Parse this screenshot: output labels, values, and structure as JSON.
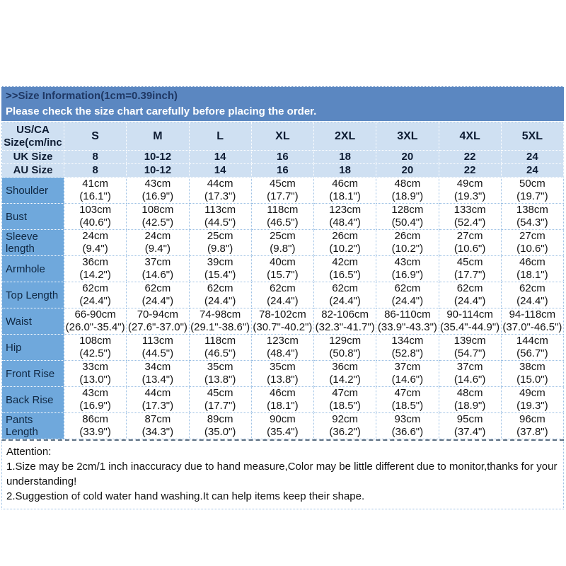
{
  "colors": {
    "banner_blue": "#5b87c1",
    "header_light_blue": "#cfe0f2",
    "row_label_blue": "#6fa8dc",
    "grid_dotted_blue": "#9cc0e4",
    "title_navy": "#1f3864",
    "bottom_rule_gray": "#5f7183"
  },
  "banner": {
    "title": ">>Size Information(1cm=0.39inch)",
    "subtitle": "Please check the size chart carefully before placing the order."
  },
  "table": {
    "corner": {
      "line1": "US/CA",
      "line2": "Size(cm/inc"
    },
    "columns": [
      "S",
      "M",
      "L",
      "XL",
      "2XL",
      "3XL",
      "4XL",
      "5XL"
    ],
    "uk": {
      "label": "UK Size",
      "values": [
        "8",
        "10-12",
        "14",
        "16",
        "18",
        "20",
        "22",
        "24"
      ]
    },
    "au": {
      "label": "AU Size",
      "values": [
        "8",
        "10-12",
        "14",
        "16",
        "18",
        "20",
        "22",
        "24"
      ]
    },
    "measurements": [
      {
        "label": "Shoulder",
        "cm": [
          "41cm",
          "43cm",
          "44cm",
          "45cm",
          "46cm",
          "48cm",
          "49cm",
          "50cm"
        ],
        "inch": [
          "(16.1\")",
          "(16.9\")",
          "(17.3\")",
          "(17.7\")",
          "(18.1\")",
          "(18.9\")",
          "(19.3\")",
          "(19.7\")"
        ]
      },
      {
        "label": "Bust",
        "cm": [
          "103cm",
          "108cm",
          "113cm",
          "118cm",
          "123cm",
          "128cm",
          "133cm",
          "138cm"
        ],
        "inch": [
          "(40.6\")",
          "(42.5\")",
          "(44.5\")",
          "(46.5\")",
          "(48.4\")",
          "(50.4\")",
          "(52.4\")",
          "(54.3\")"
        ]
      },
      {
        "label": "Sleeve length",
        "cm": [
          "24cm",
          "24cm",
          "25cm",
          "25cm",
          "26cm",
          "26cm",
          "27cm",
          "27cm"
        ],
        "inch": [
          "(9.4\")",
          "(9.4\")",
          "(9.8\")",
          "(9.8\")",
          "(10.2\")",
          "(10.2\")",
          "(10.6\")",
          "(10.6\")"
        ]
      },
      {
        "label": "Armhole",
        "cm": [
          "36cm",
          "37cm",
          "39cm",
          "40cm",
          "42cm",
          "43cm",
          "45cm",
          "46cm"
        ],
        "inch": [
          "(14.2\")",
          "(14.6\")",
          "(15.4\")",
          "(15.7\")",
          "(16.5\")",
          "(16.9\")",
          "(17.7\")",
          "(18.1\")"
        ]
      },
      {
        "label": "Top Length",
        "cm": [
          "62cm",
          "62cm",
          "62cm",
          "62cm",
          "62cm",
          "62cm",
          "62cm",
          "62cm"
        ],
        "inch": [
          "(24.4\")",
          "(24.4\")",
          "(24.4\")",
          "(24.4\")",
          "(24.4\")",
          "(24.4\")",
          "(24.4\")",
          "(24.4\")"
        ]
      },
      {
        "label": "Waist",
        "cm": [
          "66-90cm",
          "70-94cm",
          "74-98cm",
          "78-102cm",
          "82-106cm",
          "86-110cm",
          "90-114cm",
          "94-118cm"
        ],
        "inch": [
          "(26.0\"-35.4\")",
          "(27.6\"-37.0\")",
          "(29.1\"-38.6\")",
          "(30.7\"-40.2\")",
          "(32.3\"-41.7\")",
          "(33.9\"-43.3\")",
          "(35.4\"-44.9\")",
          "(37.0\"-46.5\")"
        ]
      },
      {
        "label": "Hip",
        "cm": [
          "108cm",
          "113cm",
          "118cm",
          "123cm",
          "129cm",
          "134cm",
          "139cm",
          "144cm"
        ],
        "inch": [
          "(42.5\")",
          "(44.5\")",
          "(46.5\")",
          "(48.4\")",
          "(50.8\")",
          "(52.8\")",
          "(54.7\")",
          "(56.7\")"
        ]
      },
      {
        "label": "Front Rise",
        "cm": [
          "33cm",
          "34cm",
          "35cm",
          "35cm",
          "36cm",
          "37cm",
          "37cm",
          "38cm"
        ],
        "inch": [
          "(13.0\")",
          "(13.4\")",
          "(13.8\")",
          "(13.8\")",
          "(14.2\")",
          "(14.6\")",
          "(14.6\")",
          "(15.0\")"
        ]
      },
      {
        "label": "Back Rise",
        "cm": [
          "43cm",
          "44cm",
          "45cm",
          "46cm",
          "47cm",
          "47cm",
          "48cm",
          "49cm"
        ],
        "inch": [
          "(16.9\")",
          "(17.3\")",
          "(17.7\")",
          "(18.1\")",
          "(18.5\")",
          "(18.5\")",
          "(18.9\")",
          "(19.3\")"
        ]
      },
      {
        "label": "Pants Length",
        "cm": [
          "86cm",
          "87cm",
          "89cm",
          "90cm",
          "92cm",
          "93cm",
          "95cm",
          "96cm"
        ],
        "inch": [
          "(33.9\")",
          "(34.3\")",
          "(35.0\")",
          "(35.4\")",
          "(36.2\")",
          "(36.6\")",
          "(37.4\")",
          "(37.8\")"
        ]
      }
    ]
  },
  "attention": {
    "heading": "Attention:",
    "lines": [
      "1.Size may be 2cm/1 inch inaccuracy due to hand measure,Color may be little different due to monitor,thanks for your understanding!",
      "2.Suggestion of cold water hand washing.It can help items keep their shape."
    ]
  }
}
